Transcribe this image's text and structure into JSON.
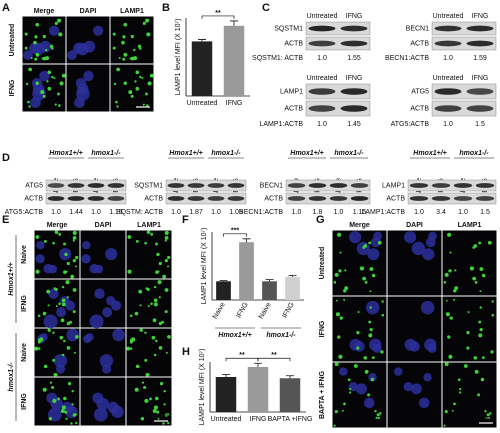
{
  "panels": {
    "A": {
      "letter": "A",
      "columns": [
        "Merge",
        "DAPI",
        "LAMP1"
      ],
      "rows": [
        "Untreated",
        "IFNG"
      ],
      "scale": "10 μm"
    },
    "B": {
      "letter": "B"
    },
    "C": {
      "letter": "C",
      "blots": [
        {
          "conditions": [
            "Untreated",
            "IFNG"
          ],
          "bands": [
            "SQSTM1",
            "ACTB"
          ],
          "ratio_label": "SQSTM1: ACTB",
          "ratios": [
            "1.0",
            "1.55"
          ]
        },
        {
          "conditions": [
            "Untreated",
            "IFNG"
          ],
          "bands": [
            "LAMP1",
            "ACTB"
          ],
          "ratio_label": "LAMP1:ACTB",
          "ratios": [
            "1.0",
            "1.45"
          ]
        },
        {
          "conditions": [
            "Untreated",
            "IFNG"
          ],
          "bands": [
            "BECN1",
            "ACTB"
          ],
          "ratio_label": "BECN1:ACTB",
          "ratios": [
            "1.0",
            "1.59"
          ]
        },
        {
          "conditions": [
            "Untreated",
            "IFNG"
          ],
          "bands": [
            "ATG5",
            "ACTB"
          ],
          "ratio_label": "ATG5:ACTB",
          "ratios": [
            "1.0",
            "1.5"
          ]
        }
      ]
    },
    "D": {
      "letter": "D",
      "blots": [
        {
          "groups": [
            "Hmox1+/+",
            "hmox1-/-"
          ],
          "conditions": [
            "Naive",
            "IFNG",
            "Naive",
            "IFNG"
          ],
          "bands": [
            "ATG5",
            "ACTB"
          ],
          "ratio_label": "ATG5:ACTB",
          "ratios": [
            "1.0",
            "1.44",
            "1.0",
            "1.15"
          ]
        },
        {
          "groups": [
            "Hmox1+/+",
            "hmox1-/-"
          ],
          "conditions": [
            "Naive",
            "IFNG",
            "Naive",
            "IFNG"
          ],
          "bands": [
            "SQSTM1",
            "ACTB"
          ],
          "ratio_label": "SQSTM: ACTB",
          "ratios": [
            "1.0",
            "1.87",
            "1.0",
            "1.05"
          ]
        },
        {
          "groups": [
            "Hmox1+/+",
            "hmox1-/-"
          ],
          "conditions": [
            "Naive",
            "IFNG",
            "Naive",
            "IFNG"
          ],
          "bands": [
            "BECN1",
            "ACTB"
          ],
          "ratio_label": "BECN1:ACTB",
          "ratios": [
            "1.0",
            "1.8",
            "1.0",
            "1.15"
          ]
        },
        {
          "groups": [
            "Hmox1+/+",
            "hmox1-/-"
          ],
          "conditions": [
            "Naive",
            "IFNG",
            "Naive",
            "IFNG"
          ],
          "bands": [
            "LAMP1",
            "ACTB"
          ],
          "ratio_label": "LAMP1:ACTB",
          "ratios": [
            "1.0",
            "3.4",
            "1.0",
            "1.5"
          ]
        }
      ]
    },
    "E": {
      "letter": "E",
      "columns": [
        "Merge",
        "DAPI",
        "LAMP1"
      ],
      "rows": [
        "Naive",
        "IFNG",
        "Naive",
        "IFNG"
      ],
      "groups": [
        "Hmox1+/+",
        "hmox1-/-"
      ],
      "scale": "10 μm"
    },
    "F": {
      "letter": "F"
    },
    "G": {
      "letter": "G",
      "columns": [
        "Merge",
        "DAPI",
        "LAMP1"
      ],
      "rows": [
        "Untreated",
        "IFNG",
        "BAPTA + IFNG"
      ],
      "scale": "10 μm"
    },
    "H": {
      "letter": "H"
    }
  },
  "chart_data": [
    {
      "type": "bar",
      "y_label": "LAMP1 level MFI (X 10⁷)",
      "categories": [
        "Untreated",
        "IFNG"
      ],
      "values": [
        2.8,
        3.6
      ],
      "errors": [
        0.1,
        0.25
      ],
      "colors": [
        "#222222",
        "#9a9a9a"
      ],
      "ylim": [
        0,
        4
      ],
      "annotations": [
        {
          "text": "**",
          "from": 0,
          "to": 1
        }
      ]
    },
    {
      "type": "bar",
      "y_label": "LAMP1 level MFI (X 10⁷)",
      "categories": [
        "Naive",
        "IFNG",
        "Naive",
        "IFNG"
      ],
      "values": [
        0.55,
        1.7,
        0.55,
        0.68
      ],
      "errors": [
        0.02,
        0.1,
        0.05,
        0.04
      ],
      "colors": [
        "#222222",
        "#9a9a9a",
        "#555555",
        "#d0d0d0"
      ],
      "ylim": [
        0,
        2
      ],
      "group_labels": [
        "Hmox1+/+",
        "hmox1-/-"
      ],
      "annotations": [
        {
          "text": "***",
          "from": 0,
          "to": 1
        }
      ]
    },
    {
      "type": "bar",
      "y_label": "LAMP1 level MFI (X 10⁷)",
      "categories": [
        "Untreated",
        "IFNG",
        "BAPTA +IFNG"
      ],
      "values": [
        2.8,
        3.6,
        2.7
      ],
      "errors": [
        0.2,
        0.3,
        0.2
      ],
      "colors": [
        "#222222",
        "#9a9a9a",
        "#555555"
      ],
      "ylim": [
        0,
        4
      ],
      "annotations": [
        {
          "text": "**",
          "from": 0,
          "to": 1
        },
        {
          "text": "**",
          "from": 1,
          "to": 2
        }
      ]
    }
  ]
}
